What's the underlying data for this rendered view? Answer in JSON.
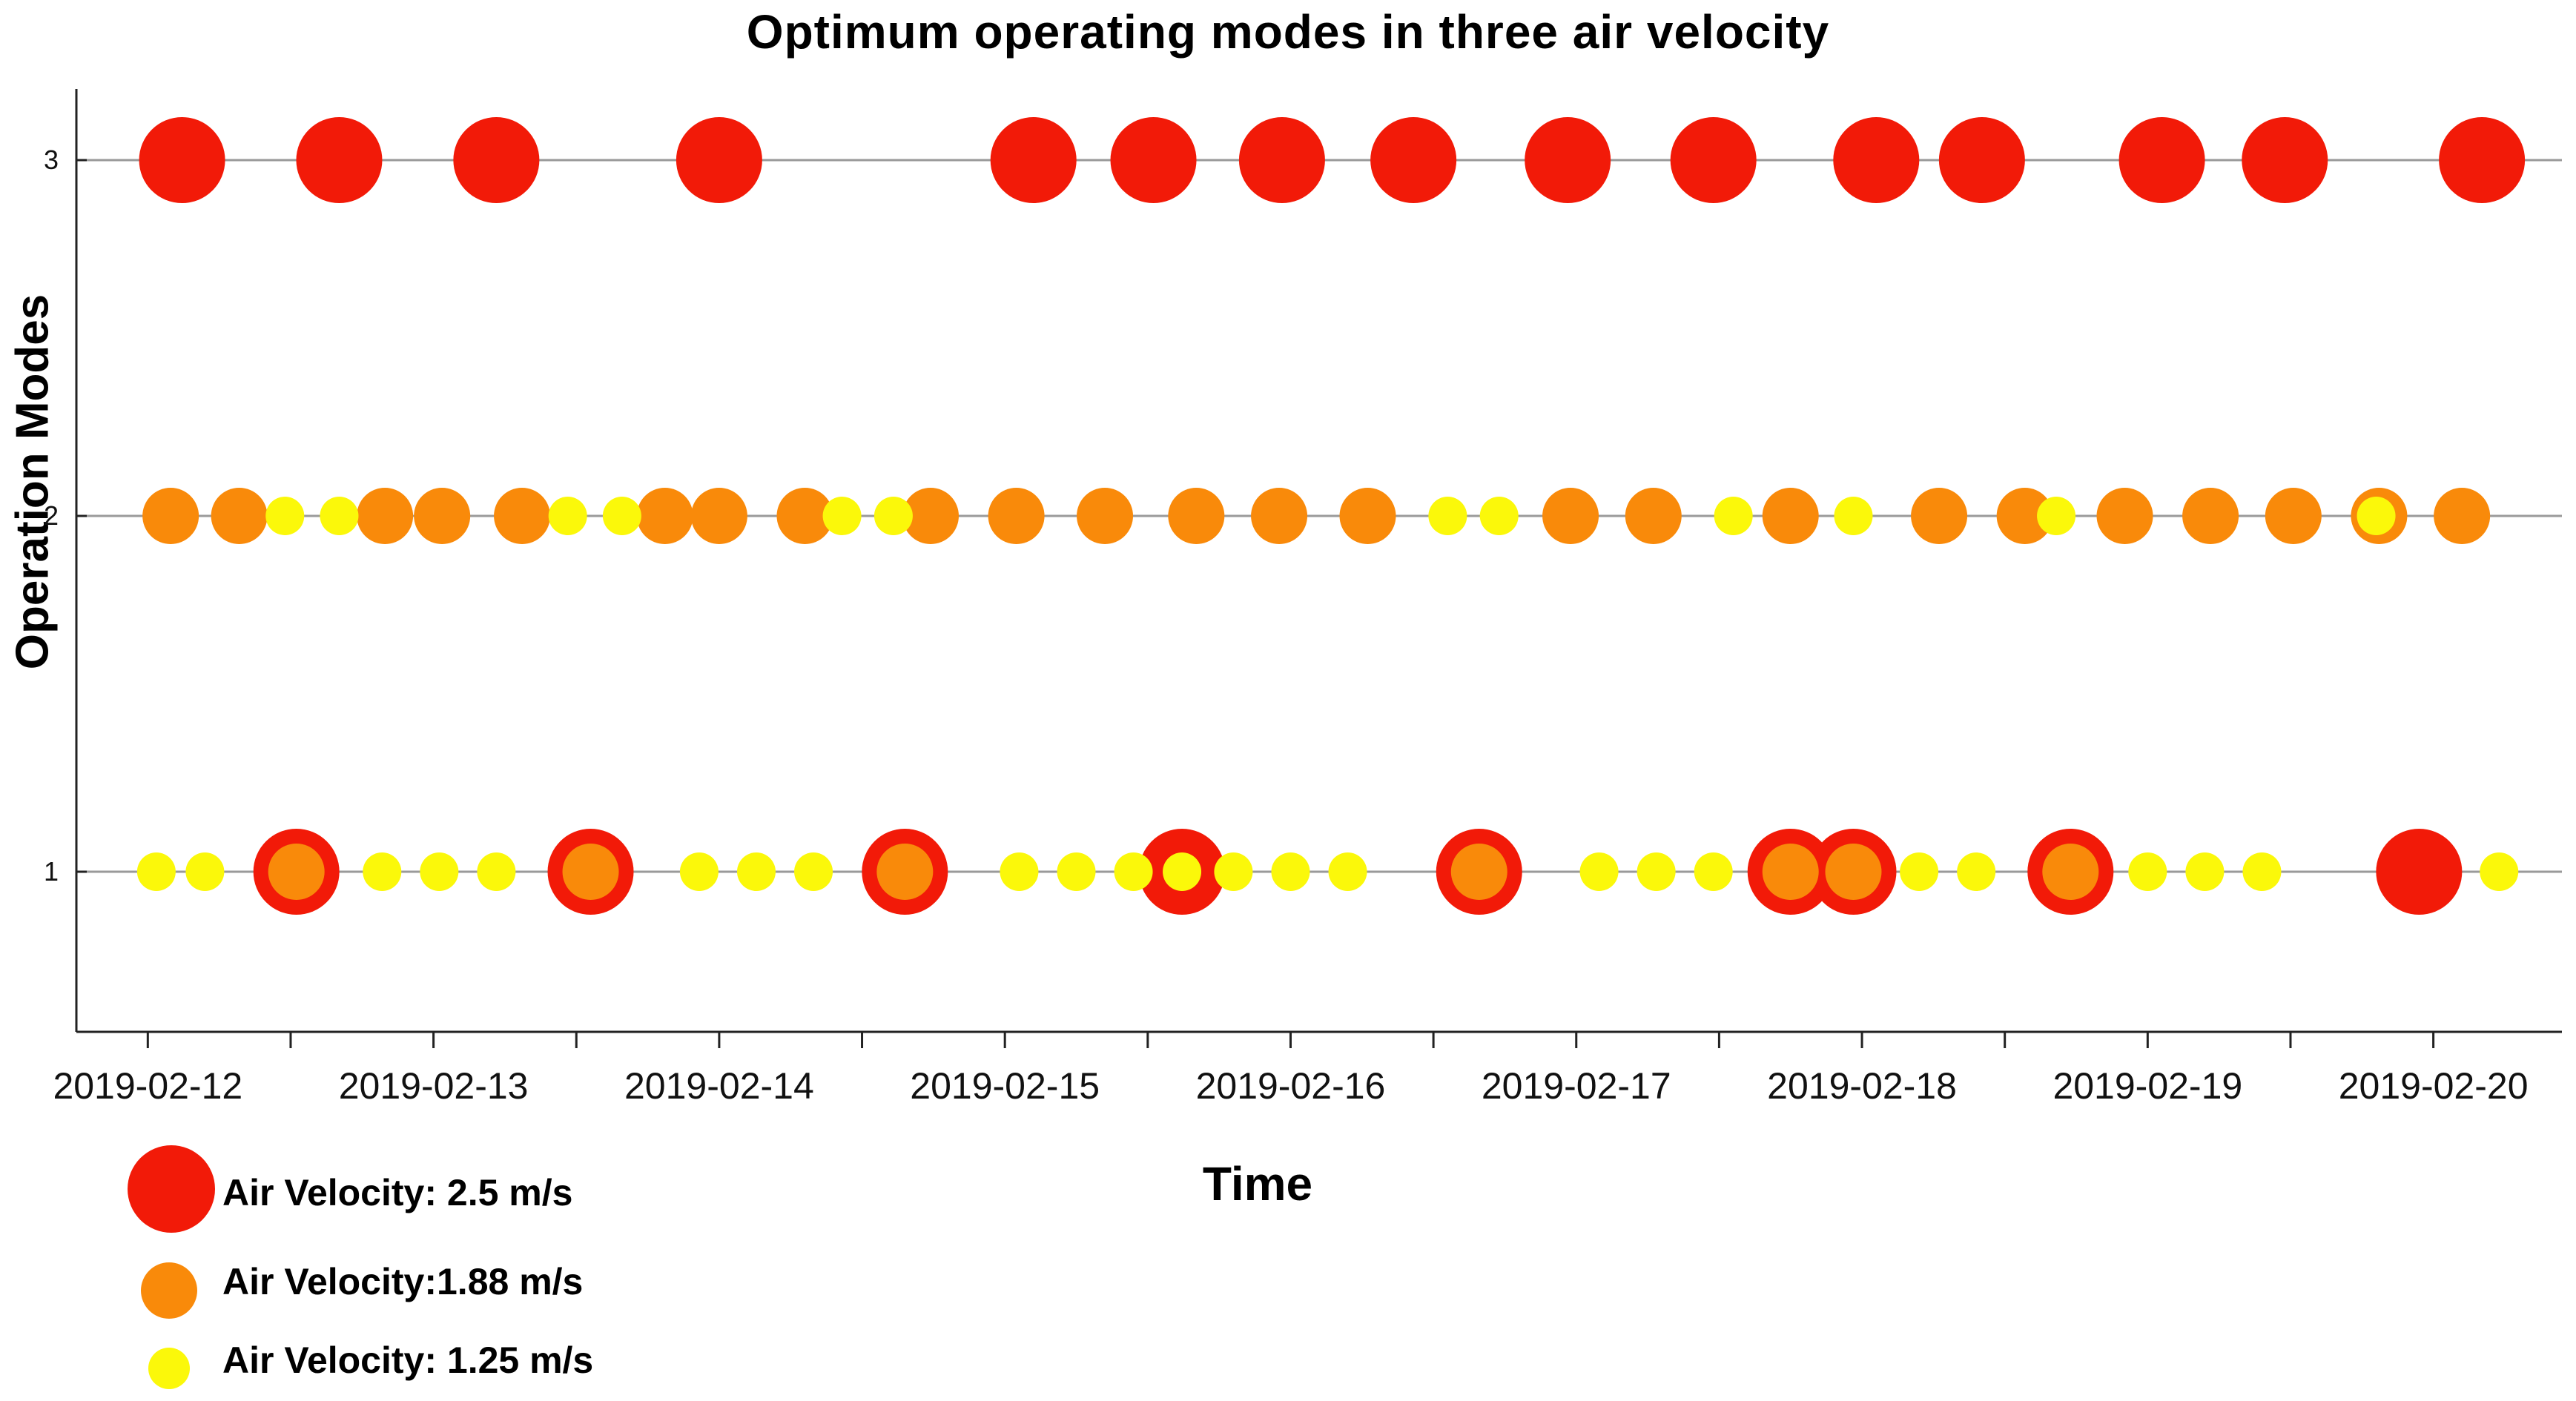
{
  "chart_data": {
    "type": "scatter",
    "title": "Optimum operating modes in three air velocity",
    "xlabel": "Time",
    "ylabel": "Operation Modes",
    "x_tick_labels": [
      "2019-02-12",
      "2019-02-13",
      "2019-02-14",
      "2019-02-15",
      "2019-02-16",
      "2019-02-17",
      "2019-02-18",
      "2019-02-19",
      "2019-02-20"
    ],
    "y_ticks": [
      1,
      2,
      3
    ],
    "xlim": [
      -0.25,
      8.45
    ],
    "ylim": [
      0.55,
      3.2
    ],
    "grid_y": true,
    "legend_position": "bottom-left",
    "series": [
      {
        "name": "Air Velocity: 2.5 m/s",
        "color": "#f21a08",
        "points": [
          {
            "x": 0.12,
            "y": 3
          },
          {
            "x": 0.67,
            "y": 3
          },
          {
            "x": 1.22,
            "y": 3
          },
          {
            "x": 2.0,
            "y": 3
          },
          {
            "x": 3.1,
            "y": 3
          },
          {
            "x": 3.52,
            "y": 3
          },
          {
            "x": 3.97,
            "y": 3
          },
          {
            "x": 4.43,
            "y": 3
          },
          {
            "x": 4.97,
            "y": 3
          },
          {
            "x": 5.48,
            "y": 3
          },
          {
            "x": 6.05,
            "y": 3
          },
          {
            "x": 6.42,
            "y": 3
          },
          {
            "x": 7.05,
            "y": 3
          },
          {
            "x": 7.48,
            "y": 3
          },
          {
            "x": 8.17,
            "y": 3
          },
          {
            "x": 0.52,
            "y": 1
          },
          {
            "x": 1.55,
            "y": 1
          },
          {
            "x": 2.65,
            "y": 1
          },
          {
            "x": 3.62,
            "y": 1
          },
          {
            "x": 4.66,
            "y": 1
          },
          {
            "x": 5.75,
            "y": 1
          },
          {
            "x": 5.97,
            "y": 1
          },
          {
            "x": 6.73,
            "y": 1
          },
          {
            "x": 7.95,
            "y": 1
          }
        ]
      },
      {
        "name": "Air Velocity:1.88 m/s",
        "color": "#f98a0a",
        "points": [
          {
            "x": 0.08,
            "y": 2
          },
          {
            "x": 0.32,
            "y": 2
          },
          {
            "x": 0.83,
            "y": 2
          },
          {
            "x": 1.03,
            "y": 2
          },
          {
            "x": 1.31,
            "y": 2
          },
          {
            "x": 1.81,
            "y": 2
          },
          {
            "x": 2.0,
            "y": 2
          },
          {
            "x": 2.3,
            "y": 2
          },
          {
            "x": 2.74,
            "y": 2
          },
          {
            "x": 3.04,
            "y": 2
          },
          {
            "x": 3.35,
            "y": 2
          },
          {
            "x": 3.67,
            "y": 2
          },
          {
            "x": 3.96,
            "y": 2
          },
          {
            "x": 4.27,
            "y": 2
          },
          {
            "x": 4.98,
            "y": 2
          },
          {
            "x": 5.27,
            "y": 2
          },
          {
            "x": 5.75,
            "y": 2
          },
          {
            "x": 6.27,
            "y": 2
          },
          {
            "x": 6.57,
            "y": 2
          },
          {
            "x": 6.92,
            "y": 2
          },
          {
            "x": 7.22,
            "y": 2
          },
          {
            "x": 7.51,
            "y": 2
          },
          {
            "x": 7.81,
            "y": 2
          },
          {
            "x": 8.1,
            "y": 2
          },
          {
            "x": 0.52,
            "y": 1
          },
          {
            "x": 1.55,
            "y": 1
          },
          {
            "x": 2.65,
            "y": 1
          },
          {
            "x": 4.66,
            "y": 1
          },
          {
            "x": 5.75,
            "y": 1
          },
          {
            "x": 5.97,
            "y": 1
          },
          {
            "x": 6.73,
            "y": 1
          }
        ]
      },
      {
        "name": "Air Velocity: 1.25 m/s",
        "color": "#fbf80a",
        "points": [
          {
            "x": 0.48,
            "y": 2
          },
          {
            "x": 0.67,
            "y": 2
          },
          {
            "x": 1.47,
            "y": 2
          },
          {
            "x": 1.66,
            "y": 2
          },
          {
            "x": 2.43,
            "y": 2
          },
          {
            "x": 2.61,
            "y": 2
          },
          {
            "x": 5.55,
            "y": 2
          },
          {
            "x": 5.97,
            "y": 2
          },
          {
            "x": 6.68,
            "y": 2
          },
          {
            "x": 7.8,
            "y": 2
          },
          {
            "x": 4.55,
            "y": 2
          },
          {
            "x": 4.73,
            "y": 2
          },
          {
            "x": 0.03,
            "y": 1
          },
          {
            "x": 0.2,
            "y": 1
          },
          {
            "x": 0.82,
            "y": 1
          },
          {
            "x": 1.02,
            "y": 1
          },
          {
            "x": 1.22,
            "y": 1
          },
          {
            "x": 1.93,
            "y": 1
          },
          {
            "x": 2.13,
            "y": 1
          },
          {
            "x": 2.33,
            "y": 1
          },
          {
            "x": 3.05,
            "y": 1
          },
          {
            "x": 3.25,
            "y": 1
          },
          {
            "x": 3.45,
            "y": 1
          },
          {
            "x": 3.62,
            "y": 1
          },
          {
            "x": 3.8,
            "y": 1
          },
          {
            "x": 4.0,
            "y": 1
          },
          {
            "x": 4.2,
            "y": 1
          },
          {
            "x": 5.08,
            "y": 1
          },
          {
            "x": 5.28,
            "y": 1
          },
          {
            "x": 5.48,
            "y": 1
          },
          {
            "x": 6.2,
            "y": 1
          },
          {
            "x": 6.4,
            "y": 1
          },
          {
            "x": 7.0,
            "y": 1
          },
          {
            "x": 7.2,
            "y": 1
          },
          {
            "x": 7.4,
            "y": 1
          },
          {
            "x": 8.23,
            "y": 1
          }
        ]
      }
    ]
  }
}
